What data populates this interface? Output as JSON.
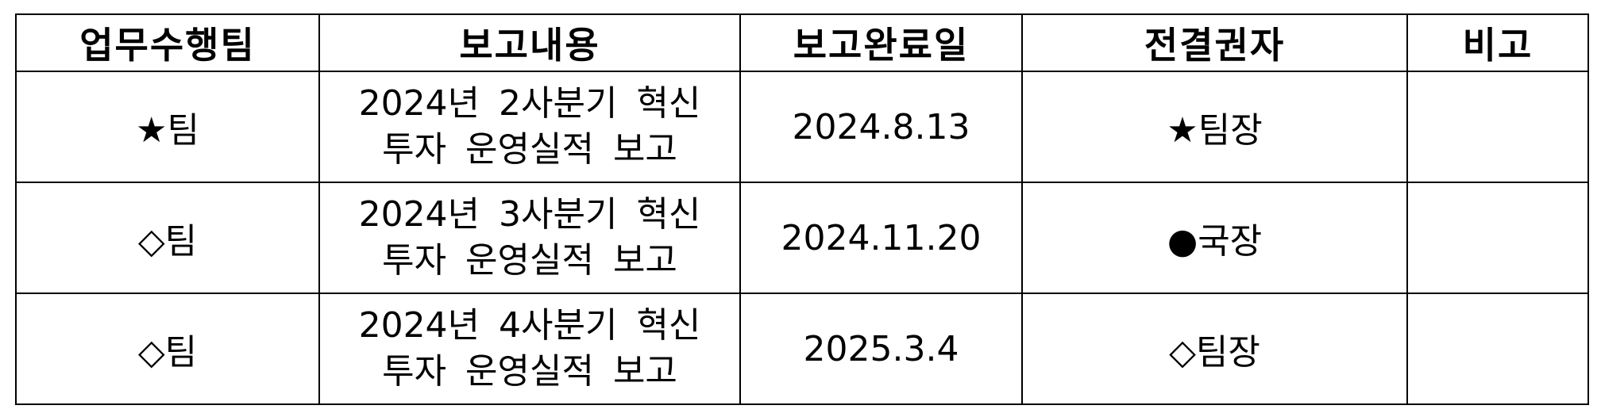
{
  "table": {
    "headers": [
      "업무수행팀",
      "보고내용",
      "보고완료일",
      "전결권자",
      "비고"
    ],
    "rows": [
      {
        "team": "★팀",
        "content_line1": "2024년 2사분기 혁신",
        "content_line2": "투자 운영실적 보고",
        "date": "2024.8.13",
        "approver": "★팀장",
        "remark": ""
      },
      {
        "team": "◇팀",
        "content_line1": "2024년 3사분기 혁신",
        "content_line2": "투자 운영실적 보고",
        "date": "2024.11.20",
        "approver": "●국장",
        "remark": ""
      },
      {
        "team": "◇팀",
        "content_line1": "2024년 4사분기 혁신",
        "content_line2": "투자 운영실적 보고",
        "date": "2025.3.4",
        "approver": "◇팀장",
        "remark": ""
      }
    ]
  }
}
